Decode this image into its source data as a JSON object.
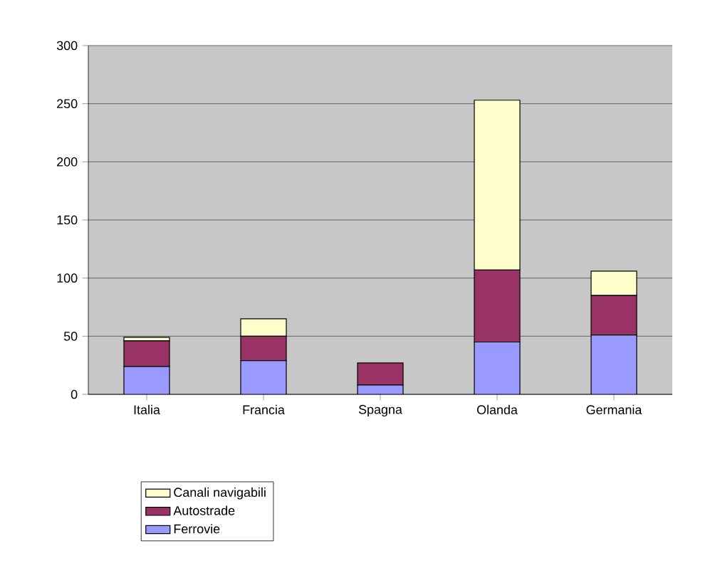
{
  "chart_data": {
    "type": "bar",
    "stacked": true,
    "categories": [
      "Italia",
      "Francia",
      "Spagna",
      "Olanda",
      "Germania"
    ],
    "series": [
      {
        "name": "Ferrovie",
        "color": "#9999ff",
        "values": [
          24,
          29,
          8,
          45,
          51
        ]
      },
      {
        "name": "Autostrade",
        "color": "#993366",
        "values": [
          22,
          21,
          19,
          62,
          34
        ]
      },
      {
        "name": "Canali navigabili",
        "color": "#ffffcc",
        "values": [
          3,
          15,
          null,
          146,
          21
        ]
      }
    ],
    "ylim": [
      0,
      300
    ],
    "yticks": [
      0,
      50,
      100,
      150,
      200,
      250,
      300
    ],
    "grid": "y",
    "legend": "bottom"
  }
}
